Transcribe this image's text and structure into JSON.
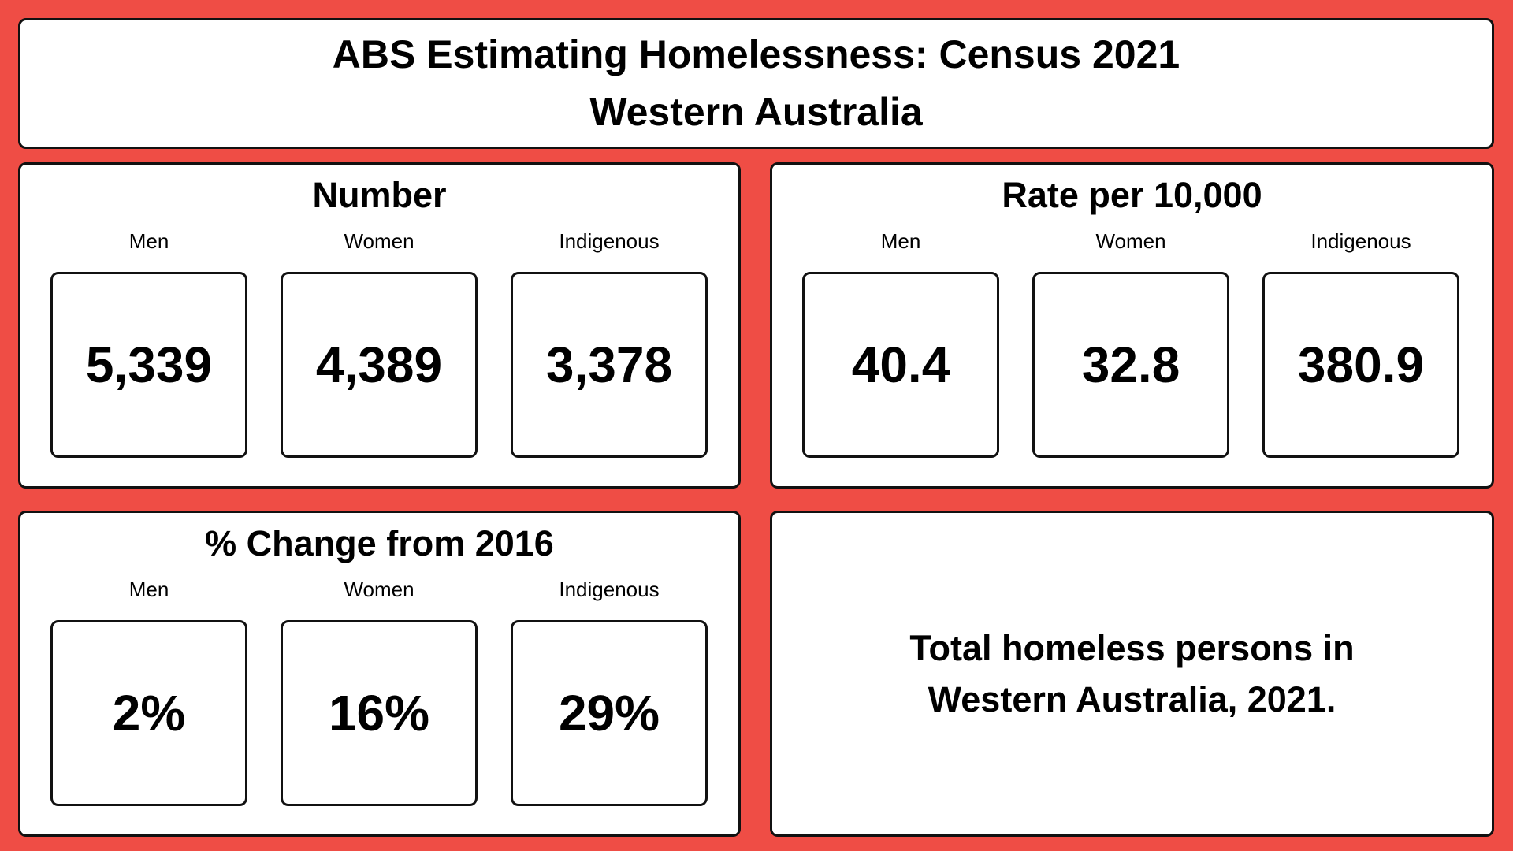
{
  "header": {
    "title_line1": "ABS Estimating Homelessness: Census 2021",
    "title_line2": "Western Australia"
  },
  "number": {
    "title": "Number",
    "labels": [
      "Men",
      "Women",
      "Indigenous"
    ],
    "values": [
      "5,339",
      "4,389",
      "3,378"
    ]
  },
  "rate": {
    "title": "Rate per 10,000",
    "labels": [
      "Men",
      "Women",
      "Indigenous"
    ],
    "values": [
      "40.4",
      "32.8",
      "380.9"
    ]
  },
  "change": {
    "title": "% Change from 2016",
    "labels": [
      "Men",
      "Women",
      "Indigenous"
    ],
    "values": [
      "2%",
      "16%",
      "29%"
    ]
  },
  "total": {
    "line1": "Total homeless persons in",
    "line2": "Western Australia, 2021."
  },
  "colors": {
    "background": "#ef4d45",
    "panel": "#ffffff",
    "border": "#111111"
  }
}
